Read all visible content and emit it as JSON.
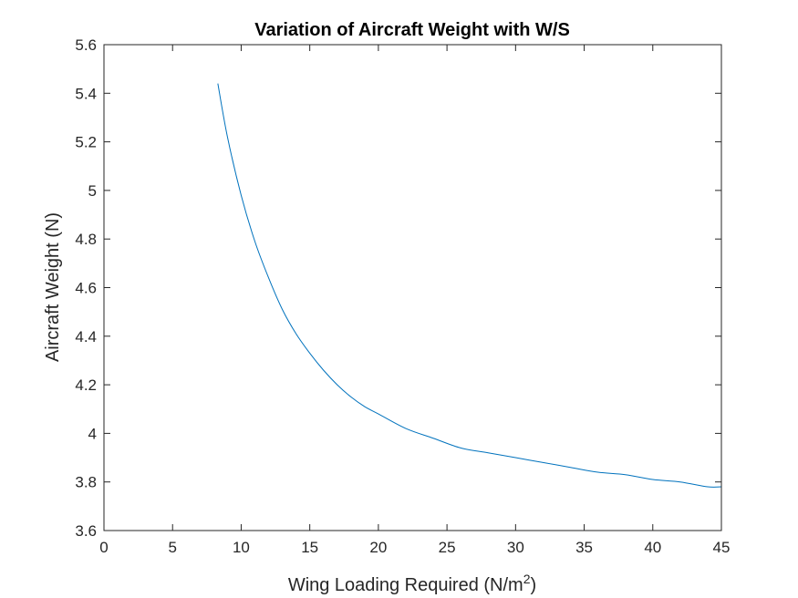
{
  "chart_data": {
    "type": "line",
    "title": "Variation of Aircraft Weight with W/S",
    "xlabel_main": "Wing Loading Required (N/m",
    "xlabel_sup": "2",
    "xlabel_close": ")",
    "ylabel": "Aircraft Weight (N)",
    "xlim": [
      0,
      45
    ],
    "ylim": [
      3.6,
      5.6
    ],
    "xticks": [
      0,
      5,
      10,
      15,
      20,
      25,
      30,
      35,
      40,
      45
    ],
    "xtick_labels": [
      "0",
      "5",
      "10",
      "15",
      "20",
      "25",
      "30",
      "35",
      "40",
      "45"
    ],
    "yticks": [
      3.6,
      3.8,
      4.0,
      4.2,
      4.4,
      4.6,
      4.8,
      5.0,
      5.2,
      5.4,
      5.6
    ],
    "ytick_labels": [
      "3.6",
      "3.8",
      "4",
      "4.2",
      "4.4",
      "4.6",
      "4.8",
      "5",
      "5.2",
      "5.4",
      "5.6"
    ],
    "grid": false,
    "line_color": "#0072BD",
    "series": [
      {
        "x": [
          8.3,
          9,
          10,
          11,
          12,
          13,
          14,
          15,
          16,
          17,
          18,
          19,
          20,
          22,
          24,
          26,
          28,
          30,
          32,
          34,
          36,
          38,
          40,
          42,
          44,
          45
        ],
        "y": [
          5.44,
          5.22,
          4.98,
          4.79,
          4.64,
          4.51,
          4.41,
          4.33,
          4.26,
          4.2,
          4.15,
          4.11,
          4.08,
          4.02,
          3.98,
          3.94,
          3.92,
          3.9,
          3.88,
          3.86,
          3.84,
          3.83,
          3.81,
          3.8,
          3.78,
          3.78
        ]
      }
    ]
  }
}
